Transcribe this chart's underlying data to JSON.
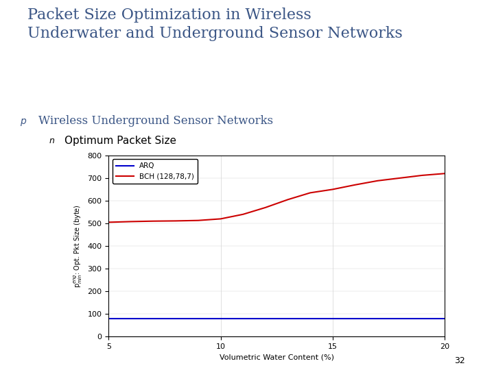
{
  "title": "Packet Size Optimization in Wireless\nUnderwater and Underground Sensor Networks",
  "title_color": "#3A5585",
  "title_fontsize": 16,
  "subtitle": "Wireless Underground Sensor Networks",
  "subtitle_fontsize": 12,
  "subtitle_color": "#3A5585",
  "bullet_label": "Optimum Packet Size",
  "bullet_fontsize": 11,
  "xlabel": "Volumetric Water Content (%)",
  "ylabel": "p$^{eng}_{min}$: Opt. Pkt Size (byte)",
  "xlim": [
    5,
    20
  ],
  "ylim": [
    0,
    800
  ],
  "xticks": [
    5,
    10,
    15,
    20
  ],
  "yticks": [
    0,
    100,
    200,
    300,
    400,
    500,
    600,
    700,
    800
  ],
  "arq_x": [
    5,
    6,
    7,
    8,
    9,
    10,
    11,
    12,
    13,
    14,
    15,
    16,
    17,
    18,
    19,
    20
  ],
  "arq_y": [
    80,
    80,
    80,
    80,
    80,
    80,
    80,
    80,
    80,
    80,
    80,
    80,
    80,
    80,
    80,
    80
  ],
  "bch_x": [
    5,
    6,
    7,
    8,
    9,
    10,
    11,
    12,
    13,
    14,
    15,
    16,
    17,
    18,
    19,
    20
  ],
  "bch_y": [
    505,
    508,
    510,
    511,
    513,
    520,
    540,
    570,
    605,
    635,
    650,
    670,
    688,
    700,
    712,
    720
  ],
  "arq_color": "#0000CC",
  "bch_color": "#CC0000",
  "arq_label": "ARQ",
  "bch_label": "BCH (128,78,7)",
  "line_width": 1.5,
  "background_color": "#FFFFFF",
  "slide_bg": "#FFFFFF",
  "accent_bar_color": "#3A5585",
  "page_number": "32"
}
